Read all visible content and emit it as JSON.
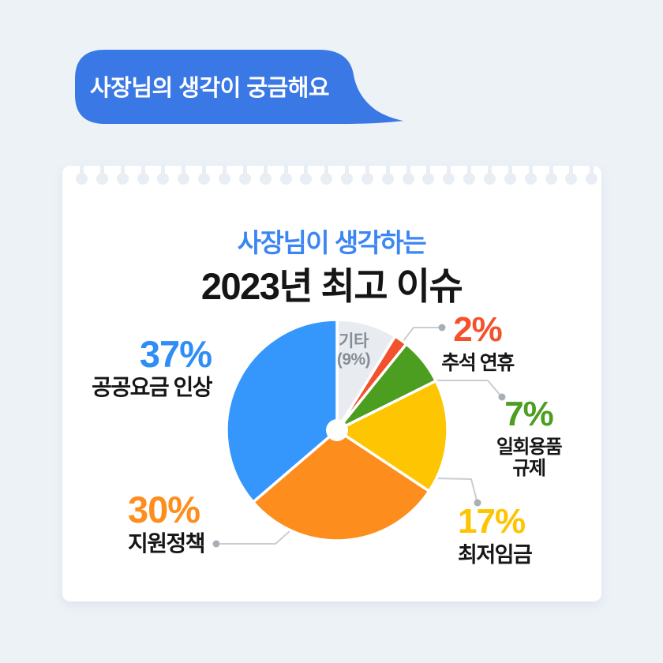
{
  "bubble": {
    "text": "사장님의 생각이 궁금해요"
  },
  "header": {
    "subtitle": "사장님이 생각하는",
    "title": "2023년 최고 이슈"
  },
  "chart_data": {
    "type": "pie",
    "title": "2023년 최고 이슈",
    "subtitle": "사장님이 생각하는",
    "start_angle_deg": 0,
    "clockwise": true,
    "donut_hole": true,
    "slices": [
      {
        "id": "etc",
        "label": "기타",
        "value": 9,
        "color": "#e8ecf1"
      },
      {
        "id": "holiday",
        "label": "추석 연휴",
        "value": 2,
        "color": "#f1512d"
      },
      {
        "id": "disposables",
        "label": "일회용품 규제",
        "value": 7,
        "color": "#4c9e20"
      },
      {
        "id": "minwage",
        "label": "최저임금",
        "value": 17,
        "color": "#fec602"
      },
      {
        "id": "policy",
        "label": "지원정책",
        "value": 30,
        "color": "#fd8e1e"
      },
      {
        "id": "utilities",
        "label": "공공요금 인상",
        "value": 37,
        "color": "#3596fc"
      }
    ]
  },
  "labels": {
    "utilities": {
      "pct": "37%",
      "name": "공공요금 인상",
      "color": "#2f8df6"
    },
    "policy": {
      "pct": "30%",
      "name": "지원정책",
      "color": "#fd8e1e"
    },
    "holiday": {
      "pct": "2%",
      "name": "추석 연휴",
      "color": "#f4512c"
    },
    "disposables": {
      "pct": "7%",
      "name_line1": "일회용품",
      "name_line2": "규제",
      "color": "#4c9e20"
    },
    "minwage": {
      "pct": "17%",
      "name": "최저임금",
      "color": "#fdc400"
    },
    "etc": {
      "line1": "기타",
      "line2": "(9%)"
    }
  },
  "colors": {
    "background": "#edf2f7",
    "bubble": "#3a78e5",
    "card": "#ffffff",
    "title_accent": "#3c86f3",
    "text_dark": "#161616",
    "etc_text": "#868d97",
    "leader_line": "#c9cdd3",
    "leader_dot": "#a9afb7"
  }
}
